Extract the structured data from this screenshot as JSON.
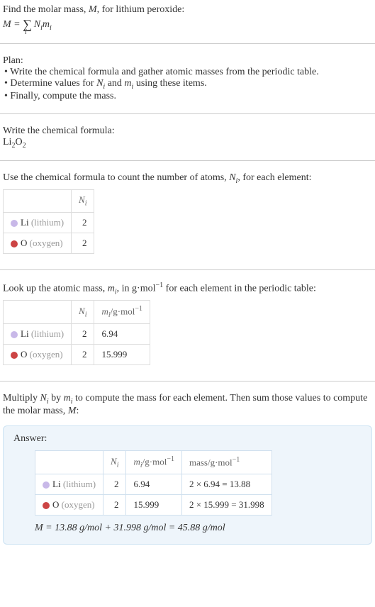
{
  "intro": {
    "line1": "Find the molar mass, ",
    "line1_var": "M",
    "line1_tail": ", for lithium peroxide:",
    "formula_lhs": "M",
    "formula_eq": " = ",
    "formula_sigma": "∑",
    "formula_sub": "i",
    "formula_rhs1": "N",
    "formula_rhs1_sub": "i",
    "formula_rhs2": "m",
    "formula_rhs2_sub": "i"
  },
  "plan": {
    "heading": "Plan:",
    "items": [
      "• Write the chemical formula and gather atomic masses from the periodic table.",
      "• Determine values for Nᵢ and mᵢ using these items.",
      "• Finally, compute the mass."
    ]
  },
  "chem": {
    "heading": "Write the chemical formula:",
    "formula_base1": "Li",
    "formula_sub1": "2",
    "formula_base2": "O",
    "formula_sub2": "2"
  },
  "count": {
    "heading_pre": "Use the chemical formula to count the number of atoms, ",
    "heading_var": "N",
    "heading_varsub": "i",
    "heading_post": ", for each element:",
    "col_n": "N",
    "col_n_sub": "i",
    "rows": [
      {
        "color": "#c8b8e8",
        "sym": "Li",
        "name": "(lithium)",
        "n": "2"
      },
      {
        "color": "#c44",
        "sym": "O",
        "name": "(oxygen)",
        "n": "2"
      }
    ]
  },
  "mass": {
    "heading_pre": "Look up the atomic mass, ",
    "heading_var": "m",
    "heading_varsub": "i",
    "heading_mid": ", in g·mol",
    "heading_sup": "−1",
    "heading_post": " for each element in the periodic table:",
    "col_n": "N",
    "col_n_sub": "i",
    "col_m": "m",
    "col_m_sub": "i",
    "col_m_unit": "/g·mol",
    "col_m_sup": "−1",
    "rows": [
      {
        "color": "#c8b8e8",
        "sym": "Li",
        "name": "(lithium)",
        "n": "2",
        "m": "6.94"
      },
      {
        "color": "#c44",
        "sym": "O",
        "name": "(oxygen)",
        "n": "2",
        "m": "15.999"
      }
    ]
  },
  "multiply": {
    "text_pre": "Multiply ",
    "var1": "N",
    "var1_sub": "i",
    "text_mid1": " by ",
    "var2": "m",
    "var2_sub": "i",
    "text_post": " to compute the mass for each element. Then sum those values to compute the molar mass, ",
    "var3": "M",
    "text_end": ":"
  },
  "answer": {
    "title": "Answer:",
    "col_n": "N",
    "col_n_sub": "i",
    "col_m": "m",
    "col_m_sub": "i",
    "col_m_unit": "/g·mol",
    "col_m_sup": "−1",
    "col_mass": "mass/g·mol",
    "col_mass_sup": "−1",
    "rows": [
      {
        "color": "#c8b8e8",
        "sym": "Li",
        "name": "(lithium)",
        "n": "2",
        "m": "6.94",
        "calc": "2 × 6.94 = 13.88"
      },
      {
        "color": "#c44",
        "sym": "O",
        "name": "(oxygen)",
        "n": "2",
        "m": "15.999",
        "calc": "2 × 15.999 = 31.998"
      }
    ],
    "final": "M = 13.88 g/mol + 31.998 g/mol = 45.88 g/mol"
  }
}
